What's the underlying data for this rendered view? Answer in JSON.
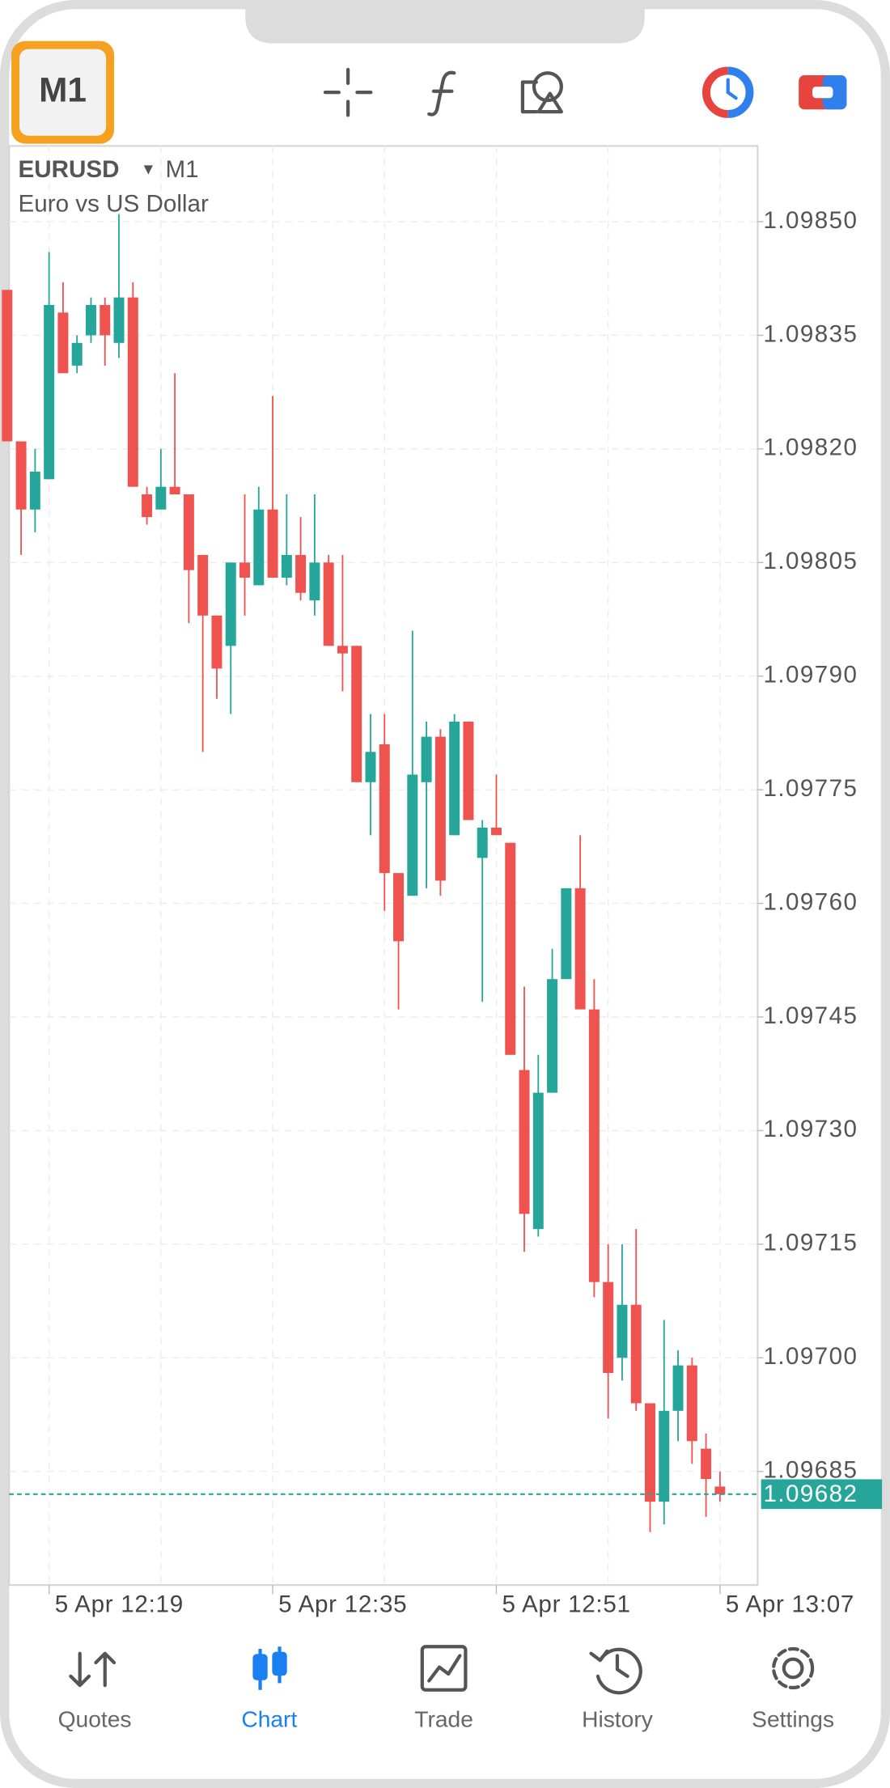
{
  "toolbar": {
    "timeframe": "M1"
  },
  "tabs": [
    "Quotes",
    "Chart",
    "Trade",
    "History",
    "Settings"
  ],
  "chart_data": {
    "type": "candlestick",
    "symbol": "EURUSD",
    "period": "M1",
    "description": "Euro vs US Dollar",
    "up_color": "#26a69a",
    "down_color": "#ef5350",
    "grid": true,
    "categories": [
      null,
      null,
      null,
      "5 Apr 12:19",
      null,
      null,
      null,
      null,
      null,
      null,
      null,
      null,
      null,
      null,
      null,
      null,
      null,
      null,
      null,
      "5 Apr 12:35",
      null,
      null,
      null,
      null,
      null,
      null,
      null,
      null,
      null,
      null,
      null,
      null,
      null,
      null,
      null,
      "5 Apr 12:51",
      null,
      null,
      null,
      null,
      null,
      null,
      null,
      null,
      null,
      null,
      null,
      null,
      null,
      null,
      null,
      "5 Apr 13:07"
    ],
    "open": [
      1.09841,
      1.09821,
      1.09812,
      1.09816,
      1.09838,
      1.09831,
      1.09835,
      1.09839,
      1.09834,
      1.0984,
      1.09814,
      1.09812,
      1.09815,
      1.09814,
      1.09806,
      1.09798,
      1.09794,
      1.09805,
      1.09802,
      1.09812,
      1.09803,
      1.09806,
      1.098,
      1.09805,
      1.09794,
      1.09794,
      1.09776,
      1.09781,
      1.09764,
      1.09761,
      1.09776,
      1.09782,
      1.09769,
      1.09784,
      1.09766,
      1.0977,
      1.09768,
      1.09738,
      1.09717,
      1.09735,
      1.0975,
      1.09762,
      1.09746,
      1.0971,
      1.097,
      1.09707,
      1.09694,
      1.09681,
      1.09693,
      1.09699,
      1.09688,
      1.09683
    ],
    "high": [
      1.09841,
      1.09821,
      1.0982,
      1.09846,
      1.09842,
      1.09835,
      1.0984,
      1.0984,
      1.09851,
      1.09842,
      1.09815,
      1.0982,
      1.0983,
      1.09814,
      1.09806,
      1.09798,
      1.09805,
      1.09814,
      1.09815,
      1.09827,
      1.09814,
      1.09811,
      1.09814,
      1.09806,
      1.09806,
      1.09794,
      1.09785,
      1.09785,
      1.09764,
      1.09796,
      1.09784,
      1.09783,
      1.09785,
      1.09784,
      1.09771,
      1.09777,
      1.09768,
      1.09749,
      1.0974,
      1.09754,
      1.09762,
      1.09769,
      1.0975,
      1.09715,
      1.09715,
      1.09717,
      1.09694,
      1.09705,
      1.09701,
      1.097,
      1.0969,
      1.09685
    ],
    "low": [
      1.09821,
      1.09806,
      1.09809,
      1.09816,
      1.0983,
      1.0983,
      1.09834,
      1.09831,
      1.09832,
      1.09815,
      1.0981,
      1.09812,
      1.09814,
      1.09797,
      1.0978,
      1.09787,
      1.09785,
      1.09798,
      1.09802,
      1.09803,
      1.09802,
      1.098,
      1.09798,
      1.09794,
      1.09788,
      1.09776,
      1.09769,
      1.09759,
      1.09746,
      1.09761,
      1.09762,
      1.09761,
      1.09769,
      1.09771,
      1.09747,
      1.09769,
      1.0974,
      1.09714,
      1.09716,
      1.09735,
      1.0975,
      1.09746,
      1.09708,
      1.09692,
      1.09697,
      1.09693,
      1.09677,
      1.09678,
      1.09689,
      1.09686,
      1.09679,
      1.09681
    ],
    "close": [
      1.09821,
      1.09812,
      1.09817,
      1.09839,
      1.0983,
      1.09834,
      1.09839,
      1.09835,
      1.0984,
      1.09815,
      1.09811,
      1.09815,
      1.09814,
      1.09804,
      1.09798,
      1.09791,
      1.09805,
      1.09803,
      1.09812,
      1.09803,
      1.09806,
      1.09801,
      1.09805,
      1.09794,
      1.09793,
      1.09776,
      1.0978,
      1.09764,
      1.09755,
      1.09777,
      1.09782,
      1.09763,
      1.09784,
      1.09771,
      1.0977,
      1.09769,
      1.0974,
      1.09719,
      1.09735,
      1.0975,
      1.09762,
      1.09746,
      1.0971,
      1.09698,
      1.09707,
      1.09694,
      1.09681,
      1.09693,
      1.09699,
      1.09689,
      1.09684,
      1.09682
    ],
    "last_price": {
      "value": 1.09682,
      "label": "1.09682"
    },
    "ylim": [
      1.0967,
      1.0986
    ],
    "yticks": [
      {
        "value": 1.0985,
        "label": "1.09850"
      },
      {
        "value": 1.09835,
        "label": "1.09835"
      },
      {
        "value": 1.0982,
        "label": "1.09820"
      },
      {
        "value": 1.09805,
        "label": "1.09805"
      },
      {
        "value": 1.0979,
        "label": "1.09790"
      },
      {
        "value": 1.09775,
        "label": "1.09775"
      },
      {
        "value": 1.0976,
        "label": "1.09760"
      },
      {
        "value": 1.09745,
        "label": "1.09745"
      },
      {
        "value": 1.0973,
        "label": "1.09730"
      },
      {
        "value": 1.09715,
        "label": "1.09715"
      },
      {
        "value": 1.097,
        "label": "1.09700"
      },
      {
        "value": 1.09685,
        "label": "1.09685"
      }
    ]
  }
}
